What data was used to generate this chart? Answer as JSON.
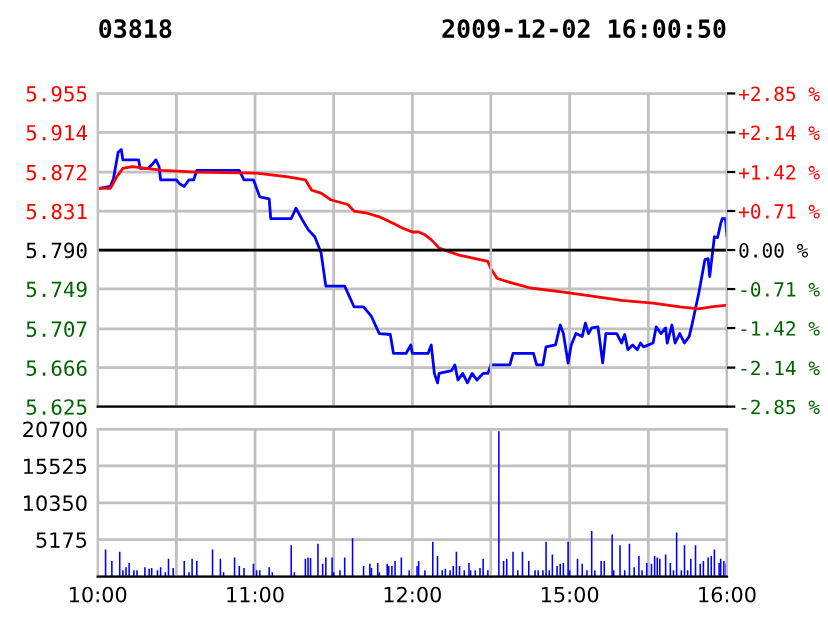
{
  "chart_data": [
    {
      "type": "line",
      "title": "03818",
      "xlim": [
        10,
        12.5
      ],
      "xticks": [
        10,
        10.5,
        11,
        11.5,
        12,
        12.5
      ],
      "ylim": [
        5.625,
        5.955
      ],
      "yticks": [
        5.625,
        5.666,
        5.707,
        5.749,
        {
          "value": 5.79,
          "label": "5.790"
        },
        5.831,
        5.872,
        5.914,
        5.955
      ],
      "tick_labels": "y",
      "grid": true,
      "ref_lines": [
        {
          "axis": "y",
          "value": 5.79,
          "color": "#000000"
        }
      ],
      "series": [
        {
          "color": "#0000ff",
          "x": [
            10.01,
            10.08,
            10.1,
            10.13,
            10.15,
            10.16,
            10.26,
            10.27,
            10.32,
            10.35,
            10.37,
            10.39,
            10.4,
            10.5,
            10.52,
            10.55,
            10.58,
            10.61,
            10.63,
            10.9,
            10.93,
            10.99,
            11.03,
            11.09,
            11.1,
            11.23,
            11.26,
            11.3,
            11.34,
            11.38,
            11.42,
            11.45,
            11.57,
            11.63,
            11.69,
            11.74,
            11.79,
            11.86,
            11.88,
            11.96,
            11.99,
            12.0,
            12.1,
            12.12,
            12.14,
            12.16,
            12.17,
            12.25,
            12.27,
            12.29,
            12.32,
            12.35,
            12.38,
            12.41,
            12.45,
            12.48,
            12.5
          ],
          "values": [
            5.855,
            5.857,
            5.865,
            5.893,
            5.896,
            5.885,
            5.885,
            5.876,
            5.876,
            5.881,
            5.885,
            5.878,
            5.864,
            5.864,
            5.86,
            5.857,
            5.864,
            5.864,
            5.874,
            5.874,
            5.864,
            5.864,
            5.846,
            5.844,
            5.823,
            5.823,
            5.834,
            5.822,
            5.811,
            5.804,
            5.787,
            5.752,
            5.752,
            5.73,
            5.73,
            5.72,
            5.702,
            5.701,
            5.681,
            5.681,
            5.69,
            5.681,
            5.681,
            5.69,
            5.66,
            5.65,
            5.66,
            5.663,
            5.669,
            5.653,
            5.66,
            5.65,
            5.66,
            5.653,
            5.66,
            5.66,
            5.669
          ]
        },
        {
          "color": "#ff0000",
          "x": [
            10.01,
            10.08,
            10.12,
            10.16,
            10.22,
            10.41,
            10.63,
            11.01,
            11.21,
            11.32,
            11.36,
            11.42,
            11.48,
            11.59,
            11.63,
            11.71,
            11.79,
            11.88,
            11.94,
            12.0,
            12.04,
            12.08,
            12.12,
            12.17,
            12.29,
            12.48,
            12.5
          ],
          "values": [
            5.855,
            5.855,
            5.867,
            5.876,
            5.878,
            5.874,
            5.872,
            5.871,
            5.867,
            5.864,
            5.853,
            5.85,
            5.843,
            5.838,
            5.831,
            5.829,
            5.825,
            5.818,
            5.813,
            5.809,
            5.809,
            5.806,
            5.801,
            5.792,
            5.785,
            5.778,
            5.77
          ]
        }
      ]
    },
    {
      "type": "line",
      "subtitle": "2009-12-02 16:00:50",
      "xlim": [
        14.5,
        16
      ],
      "xticks": [
        15,
        15.5,
        16
      ],
      "ylim": [
        5.625,
        5.955
      ],
      "yticks": [
        5.625,
        5.666,
        5.707,
        5.749,
        5.79,
        5.831,
        5.872,
        5.914,
        5.955
      ],
      "y2lim": [
        -2.85,
        2.85
      ],
      "y2ticks": [
        {
          "value": -2.85,
          "label": "-2.85 %"
        },
        {
          "value": -2.14,
          "label": "-2.14 %"
        },
        {
          "value": -1.42,
          "label": "-1.42 %"
        },
        {
          "value": -0.71,
          "label": "-0.71 %"
        },
        {
          "value": 0,
          "label": "0.00 %"
        },
        {
          "value": 0.71,
          "label": "+0.71 %"
        },
        {
          "value": 1.42,
          "label": "+1.42 %"
        },
        {
          "value": 2.14,
          "label": "+2.14 %"
        },
        {
          "value": 2.85,
          "label": "+2.85 %"
        }
      ],
      "tick_labels": false,
      "grid": true,
      "ref_lines": [
        {
          "axis": "y",
          "value": 5.79,
          "color": "#000000"
        }
      ],
      "series": [
        {
          "color": "#0000ff",
          "x": [
            14.5,
            14.62,
            14.64,
            14.77,
            14.79,
            14.83,
            14.85,
            14.91,
            14.94,
            14.96,
            14.99,
            15.01,
            15.04,
            15.08,
            15.1,
            15.12,
            15.14,
            15.18,
            15.21,
            15.23,
            15.3,
            15.33,
            15.35,
            15.37,
            15.4,
            15.43,
            15.45,
            15.47,
            15.53,
            15.55,
            15.58,
            15.61,
            15.62,
            15.65,
            15.67,
            15.7,
            15.73,
            15.76,
            15.78,
            15.82,
            15.86,
            15.88,
            15.89,
            15.92,
            15.94,
            15.96,
            15.97,
            15.99,
            16.0,
            16.0
          ],
          "values": [
            5.669,
            5.669,
            5.681,
            5.681,
            5.669,
            5.669,
            5.688,
            5.69,
            5.711,
            5.702,
            5.671,
            5.69,
            5.702,
            5.699,
            5.713,
            5.702,
            5.708,
            5.709,
            5.671,
            5.702,
            5.702,
            5.692,
            5.701,
            5.685,
            5.69,
            5.685,
            5.692,
            5.688,
            5.692,
            5.709,
            5.702,
            5.708,
            5.692,
            5.711,
            5.692,
            5.702,
            5.692,
            5.699,
            5.713,
            5.744,
            5.78,
            5.781,
            5.762,
            5.804,
            5.803,
            5.818,
            5.823,
            5.823,
            5.804,
            5.823
          ]
        },
        {
          "color": "#ff0000",
          "x": [
            14.5,
            14.54,
            14.62,
            14.75,
            14.95,
            15.12,
            15.33,
            15.53,
            15.7,
            15.82,
            15.9,
            16.0
          ],
          "values": [
            5.77,
            5.76,
            5.756,
            5.75,
            5.746,
            5.742,
            5.737,
            5.734,
            5.73,
            5.728,
            5.73,
            5.732
          ]
        }
      ]
    },
    {
      "type": "bar",
      "xlim": [
        10,
        12.5
      ],
      "xticks": [
        {
          "value": 10,
          "label": "10:00"
        },
        {
          "value": 10.5,
          "label": null
        },
        {
          "value": 11,
          "label": "11:00"
        },
        {
          "value": 11.5,
          "label": null
        },
        {
          "value": 12,
          "label": "12:00"
        },
        {
          "value": 12.5,
          "label": null
        }
      ],
      "ylim": [
        0,
        20700
      ],
      "yticks": [
        {
          "value": 0,
          "label": null
        },
        5175,
        10350,
        15525,
        20700
      ],
      "grid": true,
      "series": [
        {
          "color": "#0000ff",
          "x": [
            10.05,
            10.09,
            10.14,
            10.16,
            10.18,
            10.2,
            10.23,
            10.25,
            10.3,
            10.327,
            10.343,
            10.38,
            10.4,
            10.43,
            10.45,
            10.48,
            10.55,
            10.58,
            10.6,
            10.63,
            10.73,
            10.78,
            10.8,
            10.87,
            10.9,
            10.93,
            10.99,
            11.01,
            11.03,
            11.09,
            11.11,
            11.23,
            11.25,
            11.32,
            11.337,
            11.353,
            11.4,
            11.43,
            11.45,
            11.49,
            11.5,
            11.54,
            11.57,
            11.62,
            11.69,
            11.73,
            11.74,
            11.78,
            11.79,
            11.84,
            11.85,
            11.87,
            11.89,
            11.93,
            11.98,
            12.03,
            12.04,
            12.08,
            12.13,
            12.16,
            12.19,
            12.21,
            12.24,
            12.26,
            12.28,
            12.3,
            12.33,
            12.36,
            12.37,
            12.4,
            12.43,
            12.45,
            12.48
          ],
          "values": [
            3800,
            2200,
            3500,
            900,
            1300,
            1900,
            900,
            900,
            1300,
            1100,
            1200,
            900,
            1300,
            600,
            2500,
            1200,
            2200,
            600,
            2500,
            2200,
            3800,
            2500,
            600,
            2700,
            1500,
            1200,
            1800,
            900,
            900,
            1300,
            600,
            4400,
            600,
            2500,
            2700,
            2600,
            4600,
            1800,
            2700,
            2700,
            600,
            900,
            2700,
            5400,
            1500,
            1800,
            1200,
            1900,
            600,
            1800,
            1500,
            1500,
            2200,
            2700,
            900,
            1500,
            2200,
            900,
            4900,
            2900,
            900,
            1100,
            900,
            1500,
            3500,
            1500,
            900,
            1900,
            900,
            900,
            1200,
            2500,
            900
          ]
        }
      ]
    },
    {
      "type": "bar",
      "xlim": [
        14.5,
        16
      ],
      "xticks": [
        {
          "value": 15,
          "label": "15:00"
        },
        {
          "value": 15.5,
          "label": null
        },
        {
          "value": 16,
          "label": "16:00"
        }
      ],
      "ylim": [
        0,
        20700
      ],
      "yticks": [
        0,
        5175,
        10350,
        15525,
        20700
      ],
      "tick_labels": "x",
      "grid": true,
      "series": [
        {
          "color": "#0000ff",
          "x": [
            14.55,
            14.58,
            14.6,
            14.64,
            14.67,
            14.7,
            14.74,
            14.78,
            14.8,
            14.83,
            14.85,
            14.87,
            14.89,
            14.92,
            14.94,
            14.96,
            14.99,
            15.0,
            15.05,
            15.08,
            15.11,
            15.14,
            15.16,
            15.2,
            15.22,
            15.27,
            15.28,
            15.32,
            15.35,
            15.38,
            15.41,
            15.44,
            15.46,
            15.49,
            15.52,
            15.54,
            15.557,
            15.573,
            15.61,
            15.64,
            15.66,
            15.68,
            15.71,
            15.73,
            15.75,
            15.77,
            15.8,
            15.83,
            15.85,
            15.88,
            15.9,
            15.92,
            15.95,
            15.96,
            15.98,
            15.995
          ],
          "values": [
            20400,
            2200,
            2500,
            3500,
            900,
            3500,
            2200,
            900,
            900,
            900,
            4900,
            900,
            3100,
            1500,
            1800,
            1900,
            4900,
            900,
            2500,
            1800,
            900,
            6400,
            900,
            2200,
            2200,
            5900,
            900,
            4400,
            900,
            4600,
            1300,
            2900,
            900,
            1900,
            1800,
            2900,
            2700,
            2500,
            3100,
            1900,
            900,
            6200,
            900,
            4400,
            900,
            2500,
            4400,
            1800,
            2200,
            2700,
            2900,
            3800,
            1900,
            2500,
            2200,
            1800
          ]
        }
      ]
    }
  ]
}
